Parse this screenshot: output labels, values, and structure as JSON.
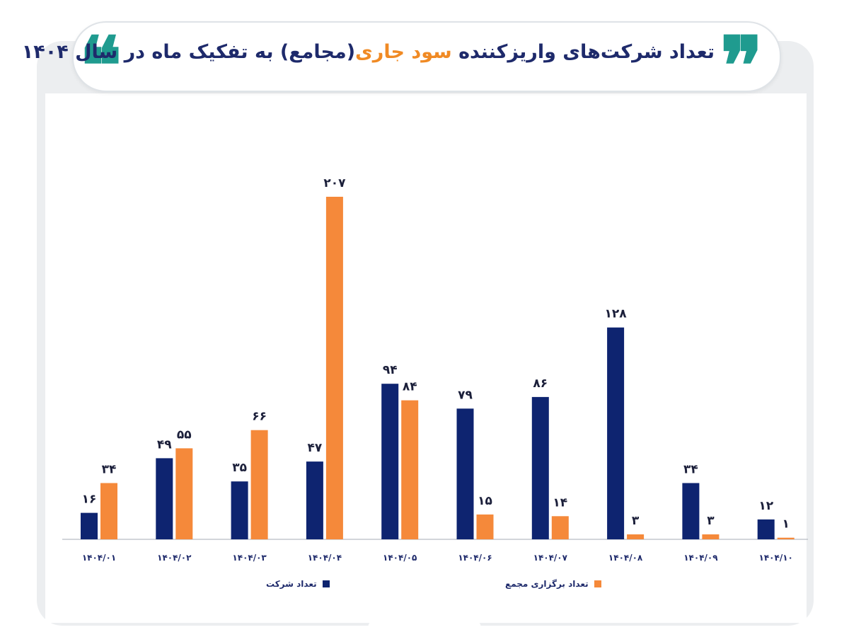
{
  "header": {
    "title_part1": "تعداد شرکت‌های واریزکننده",
    "title_accent": "سود جاری",
    "title_part2": "(مجامع) به تفکیک ماه در سال ۱۴۰۴",
    "quote_open": "❝",
    "quote_close": "❞"
  },
  "colors": {
    "company": "#0e2470",
    "meeting": "#f5893a",
    "title": "#1e2a6b",
    "accent": "#f08a24",
    "quote": "#1f9b8f"
  },
  "chart_data": {
    "type": "bar",
    "title": "تعداد شرکت‌های واریزکننده سود جاری (مجامع) به تفکیک ماه در سال ۱۴۰۴",
    "categories": [
      "۱۴۰۴/۰۱",
      "۱۴۰۴/۰۲",
      "۱۴۰۴/۰۳",
      "۱۴۰۴/۰۴",
      "۱۴۰۴/۰۵",
      "۱۴۰۴/۰۶",
      "۱۴۰۴/۰۷",
      "۱۴۰۴/۰۸",
      "۱۴۰۴/۰۹",
      "۱۴۰۴/۱۰"
    ],
    "series": [
      {
        "name": "تعداد شرکت",
        "color": "#0e2470",
        "values": [
          16,
          49,
          35,
          47,
          94,
          79,
          86,
          128,
          34,
          12
        ],
        "labels": [
          "۱۶",
          "۴۹",
          "۳۵",
          "۴۷",
          "۹۴",
          "۷۹",
          "۸۶",
          "۱۲۸",
          "۳۴",
          "۱۲"
        ]
      },
      {
        "name": "تعداد برگزاری مجمع",
        "color": "#f5893a",
        "values": [
          34,
          55,
          66,
          207,
          84,
          15,
          14,
          3,
          3,
          1
        ],
        "labels": [
          "۳۴",
          "۵۵",
          "۶۶",
          "۲۰۷",
          "۸۴",
          "۱۵",
          "۱۴",
          "۳",
          "۳",
          "۱"
        ]
      }
    ],
    "xlabel": "",
    "ylabel": "",
    "ylim": [
      0,
      207
    ],
    "grid": false,
    "legend_position": "bottom"
  }
}
